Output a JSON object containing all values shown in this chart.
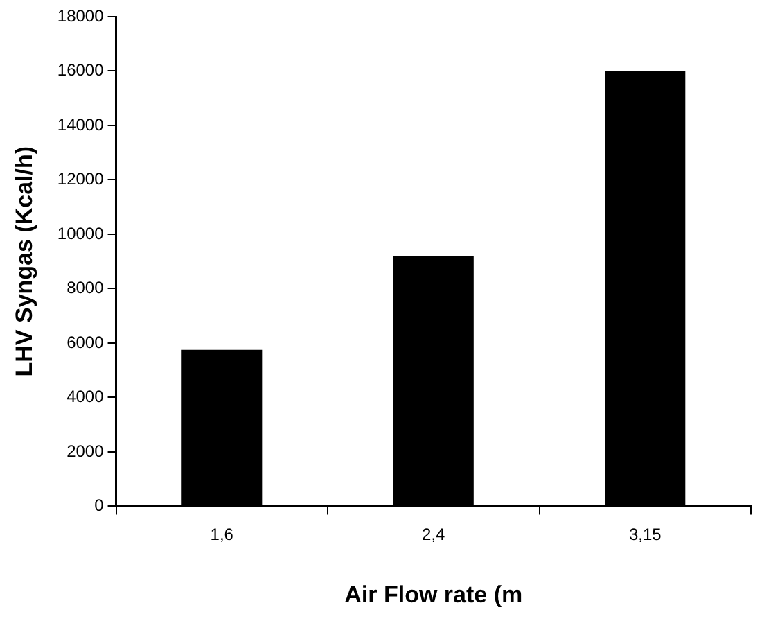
{
  "chart_data": {
    "type": "bar",
    "xlabel": "Air Flow rate (m",
    "ylabel": "LHV Syngas (Kcal/h)",
    "categories": [
      "1,6",
      "2,4",
      "3,15"
    ],
    "values": [
      5750,
      9200,
      16000
    ],
    "color": "#000000",
    "ylim": [
      0,
      18000
    ],
    "yticks": [
      0,
      2000,
      4000,
      6000,
      8000,
      10000,
      12000,
      14000,
      16000,
      18000
    ],
    "grid": false,
    "legend": false
  }
}
